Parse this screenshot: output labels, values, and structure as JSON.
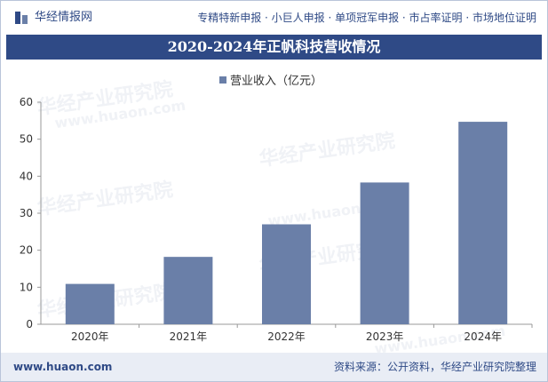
{
  "header": {
    "site_name": "华经情报网",
    "nav_text": "专精特新申报 · 小巨人申报 · 单项冠军申报 · 市占率证明 · 市场地位证明"
  },
  "title": "2020-2024年正帆科技营收情况",
  "watermark": "华经产业研究院",
  "watermark_url": "www.huaon.com",
  "footer": {
    "site_url": "www.huaon.com",
    "source": "资料来源：公开资料，华经产业研究院整理"
  },
  "colors": {
    "brand": "#2f4a86",
    "bar": "#6a7fa8"
  },
  "chart_data": {
    "type": "bar",
    "title": "2020-2024年正帆科技营收情况",
    "categories": [
      "2020年",
      "2021年",
      "2022年",
      "2023年",
      "2024年"
    ],
    "series": [
      {
        "name": "营业收入（亿元）",
        "values": [
          10.9,
          18.2,
          27.0,
          38.3,
          54.7
        ]
      }
    ],
    "xlabel": "",
    "ylabel": "",
    "ylim": [
      0,
      60
    ],
    "yticks": [
      0,
      10,
      20,
      30,
      40,
      50,
      60
    ],
    "legend_position": "top-center",
    "grid": false
  }
}
